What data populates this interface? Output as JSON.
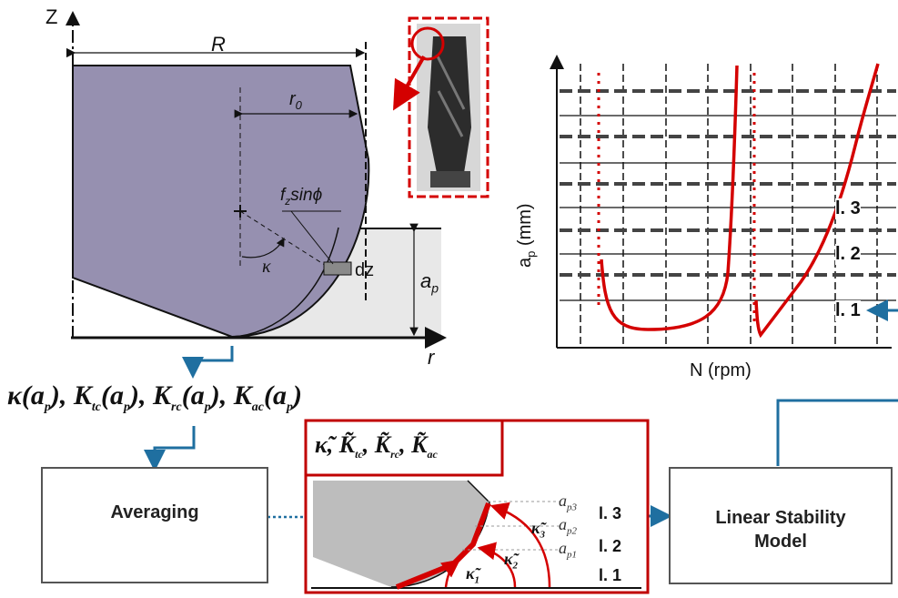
{
  "tool_geometry": {
    "z_axis": "Z",
    "r_axis": "r",
    "radius_label": "R",
    "r0_label": "r",
    "r0_sub": "0",
    "fz_label": "f",
    "fz_sub": "z",
    "fz_rest": "sinϕ",
    "kappa_label": "κ",
    "dz_label": "dz",
    "ap_label": "a",
    "ap_sub": "p"
  },
  "formula_top": {
    "k1": "κ",
    "ap": "a",
    "p": "p",
    "K": "K",
    "tc": "tc",
    "rc": "rc",
    "ac": "ac"
  },
  "averaged": {
    "k": "κ̃",
    "K": "K̃",
    "tc": "tc",
    "rc": "rc",
    "ac": "ac",
    "k1": "κ̃",
    "k1_sub": "1",
    "k2": "κ̃",
    "k2_sub": "2",
    "k3": "κ̃",
    "k3_sub": "3",
    "ap1": "a",
    "ap1_sub": "p1",
    "ap2": "a",
    "ap2_sub": "p2",
    "ap3": "a",
    "ap3_sub": "p3",
    "levels": [
      "l. 3",
      "l. 2",
      "l. 1"
    ]
  },
  "boxes": {
    "averaging": "Averaging",
    "model_line1": "Linear Stability",
    "model_line2": "Model"
  },
  "chart": {
    "xlabel": "N (rpm)",
    "ylabel": "a",
    "ylabel_sub": "p",
    "ylabel_unit": " (mm)",
    "levels": [
      "l. 3",
      "l. 2",
      "l. 1"
    ]
  },
  "colors": {
    "tool_fill": "#9690b0",
    "accent_red": "#d40000",
    "arrow_blue": "#1f6fa0",
    "workpiece": "#e8e8e8",
    "inset_tool": "#bdbdbd"
  }
}
